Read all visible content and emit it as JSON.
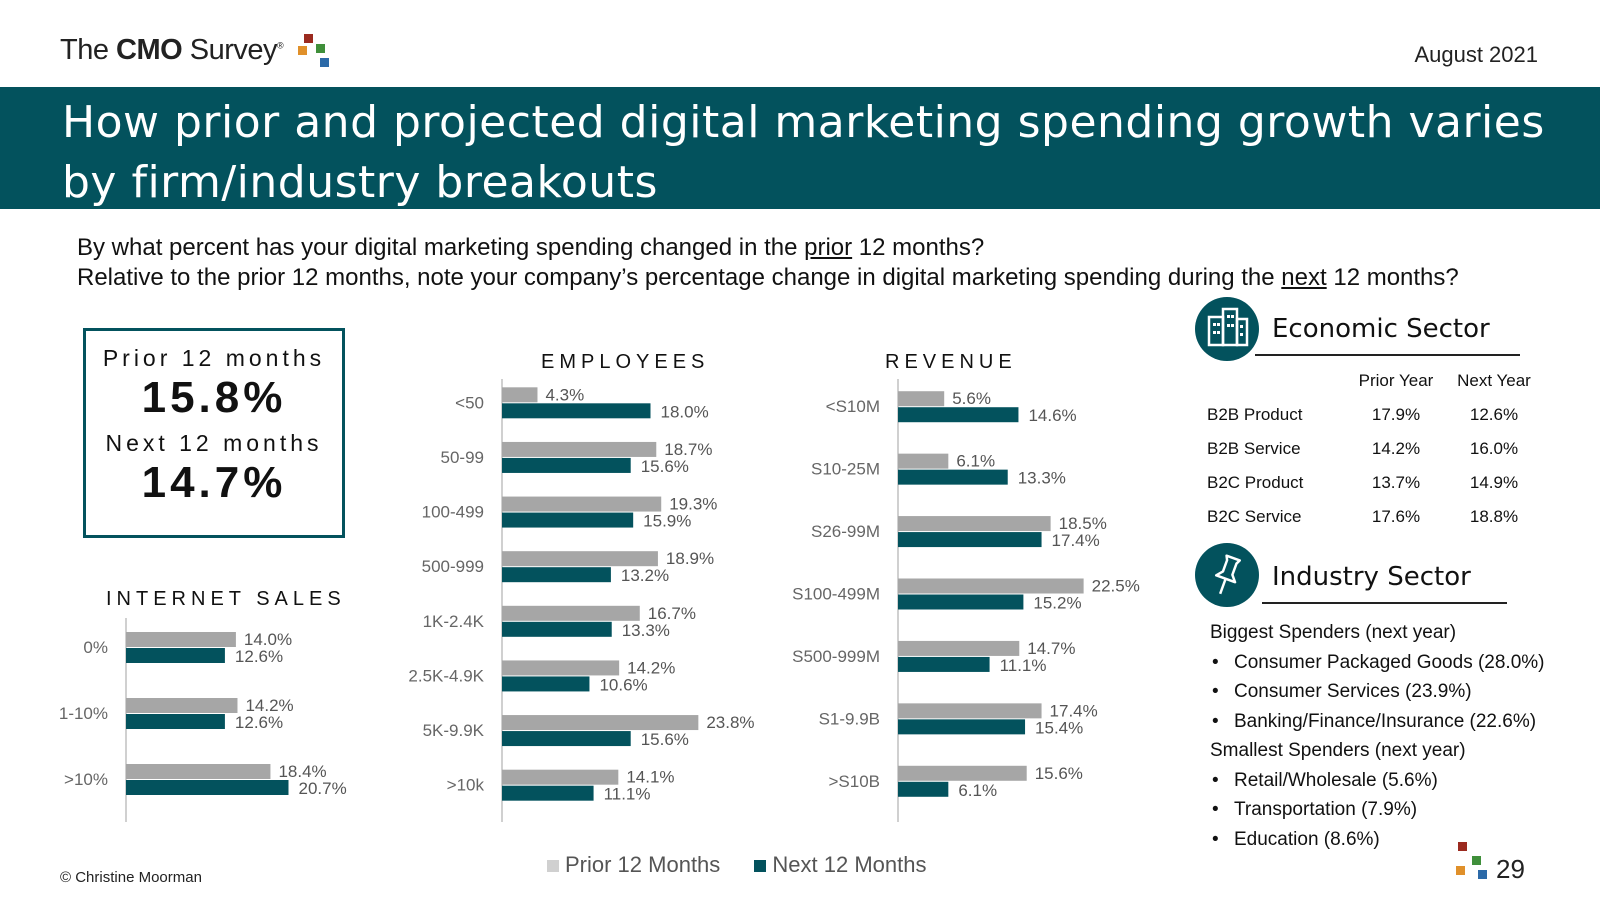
{
  "header": {
    "logo_pre": "The ",
    "logo_bold": "CMO",
    "logo_post": " Survey",
    "logo_mark": "®",
    "date": "August 2021"
  },
  "title": "How prior and projected digital marketing spending growth varies by firm/industry breakouts",
  "questions": {
    "q1_pre": "By what percent has your digital marketing spending changed in the ",
    "q1_u": "prior",
    "q1_post": " 12 months?",
    "q2_pre": "Relative to the prior 12 months, note your company’s percentage change in digital marketing spending during the ",
    "q2_u": "next",
    "q2_post": " 12 months?"
  },
  "summary": {
    "prior_label": "Prior 12 months",
    "prior_value": "15.8%",
    "next_label": "Next 12 months",
    "next_value": "14.7%"
  },
  "colors": {
    "prior": "#a6a6a6",
    "next": "#03525d",
    "brand": "#03525d"
  },
  "chart_data": [
    {
      "type": "bar",
      "orientation": "horizontal",
      "title": "INTERNET SALES",
      "categories": [
        "0%",
        "1-10%",
        ">10%"
      ],
      "series": [
        {
          "name": "Prior 12 Months",
          "values": [
            14.0,
            14.2,
            18.4
          ]
        },
        {
          "name": "Next 12 Months",
          "values": [
            12.6,
            12.6,
            20.7
          ]
        }
      ],
      "xlim": [
        0,
        25
      ]
    },
    {
      "type": "bar",
      "orientation": "horizontal",
      "title": "EMPLOYEES",
      "categories": [
        "<50",
        "50-99",
        "100-499",
        "500-999",
        "1K-2.4K",
        "2.5K-4.9K",
        "5K-9.9K",
        ">10k"
      ],
      "series": [
        {
          "name": "Prior 12 Months",
          "values": [
            4.3,
            18.7,
            19.3,
            18.9,
            16.7,
            14.2,
            23.8,
            14.1
          ]
        },
        {
          "name": "Next 12 Months",
          "values": [
            18.0,
            15.6,
            15.9,
            13.2,
            13.3,
            10.6,
            15.6,
            11.1
          ]
        }
      ],
      "xlim": [
        0,
        25
      ]
    },
    {
      "type": "bar",
      "orientation": "horizontal",
      "title": "REVENUE",
      "categories": [
        "<S10M",
        "S10-25M",
        "S26-99M",
        "S100-499M",
        "S500-999M",
        "S1-9.9B",
        ">S10B"
      ],
      "series": [
        {
          "name": "Prior 12 Months",
          "values": [
            5.6,
            6.1,
            18.5,
            22.5,
            14.7,
            17.4,
            15.6
          ]
        },
        {
          "name": "Next 12 Months",
          "values": [
            14.6,
            13.3,
            17.4,
            15.2,
            11.1,
            15.4,
            6.1
          ]
        }
      ],
      "xlim": [
        0,
        25
      ]
    }
  ],
  "legend": {
    "prior": "Prior 12 Months",
    "next": "Next 12 Months"
  },
  "economic": {
    "title": "Economic Sector",
    "headers": [
      "",
      "Prior Year",
      "Next Year"
    ],
    "rows": [
      [
        "B2B Product",
        "17.9%",
        "12.6%"
      ],
      [
        "B2B Service",
        "14.2%",
        "16.0%"
      ],
      [
        "B2C Product",
        "13.7%",
        "14.9%"
      ],
      [
        "B2C Service",
        "17.6%",
        "18.8%"
      ]
    ]
  },
  "industry": {
    "title": "Industry Sector",
    "biggest_label": "Biggest Spenders (next year)",
    "biggest": [
      "Consumer Packaged Goods (28.0%)",
      "Consumer Services (23.9%)",
      "Banking/Finance/Insurance (22.6%)"
    ],
    "smallest_label": "Smallest Spenders (next year)",
    "smallest": [
      "Retail/Wholesale (5.6%)",
      "Transportation (7.9%)",
      "Education (8.6%)"
    ]
  },
  "footer": {
    "copyright": "© Christine Moorman",
    "page": "29"
  }
}
